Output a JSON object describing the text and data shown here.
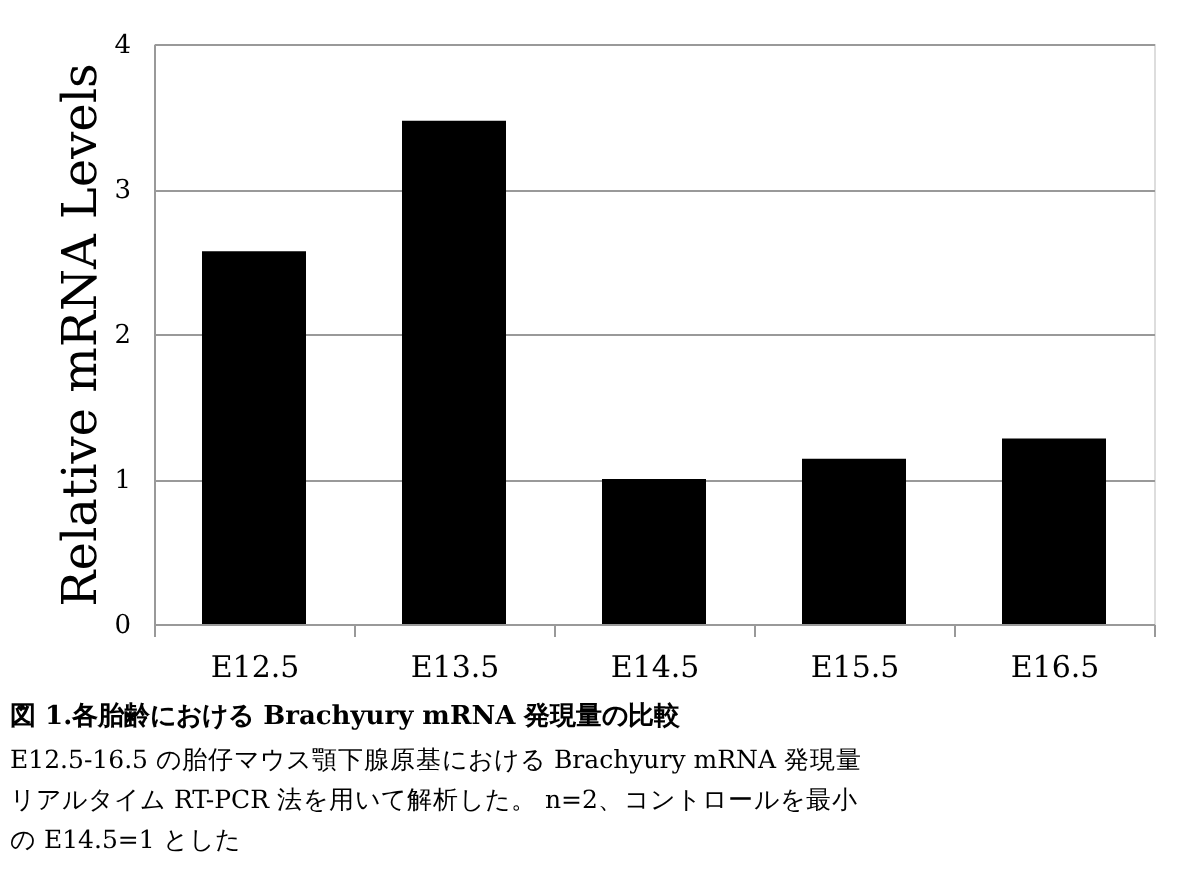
{
  "chart_data": {
    "type": "bar",
    "title": "図 1.各胎齢における Brachyury mRNA 発現量の比較",
    "ylabel": "Relative mRNA Levels",
    "categories": [
      "E12.5",
      "E13.5",
      "E14.5",
      "E15.5",
      "E16.5"
    ],
    "values": [
      2.57,
      3.47,
      1.0,
      1.14,
      1.28
    ],
    "color": "#000000",
    "ylim": [
      0,
      4
    ],
    "yticks": [
      0,
      1,
      2,
      3,
      4
    ],
    "grid": "y",
    "annotations": [
      "E12.5-16.5 の胎仔マウス顎下腺原基における Brachyury mRNA 発現量",
      "リアルタイム RT-PCR 法を用いて解析した。 n=2、コントロールを最小",
      "の E14.5=1 とした"
    ]
  }
}
